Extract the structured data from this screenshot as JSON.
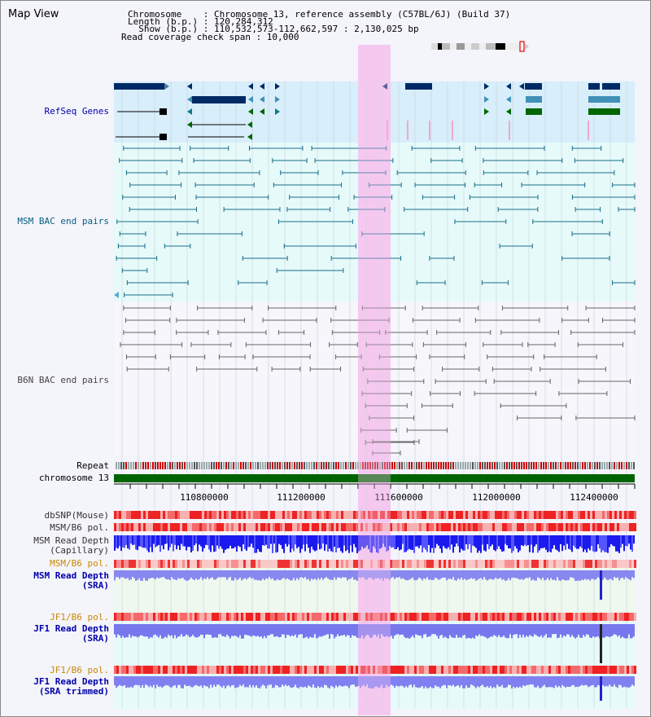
{
  "view_title": "Map View",
  "info": {
    "chromosome": "Chromosome    : Chromosome 13, reference assembly (C57BL/6J) (Build 37)",
    "length": "Length (b.p.) : 120,284,312",
    "show": "  Show (b.p.) : 110,532,573-112,662,597 : 2,130,025 bp",
    "span": "Read coverage check span : 10,000"
  },
  "tracks": {
    "refseq": "RefSeq Genes",
    "msm_bac": "MSM BAC end pairs",
    "b6n_bac": "B6N BAC end pairs",
    "repeat": "Repeat",
    "chromosome": "chromosome 13",
    "dbsnp": "dbSNP(Mouse)",
    "msm_b6_pol": "MSM/B6 pol.",
    "msm_depth_cap": "MSM Read Depth\n(Capillary)",
    "msm_b6_pol2": "MSM/B6 pol.",
    "msm_depth_sra": "MSM Read Depth\n(SRA)",
    "jf1_b6_pol": "JF1/B6 pol.",
    "jf1_depth_sra": "JF1 Read Depth\n(SRA)",
    "jf1_b6_pol2": "JF1/B6 pol.",
    "jf1_depth_trim": "JF1 Read Depth\n(SRA trimmed)"
  },
  "axis_ticks": [
    "110800000",
    "111200000",
    "111600000",
    "112000000",
    "112400000"
  ],
  "colors": {
    "refseq_label": "#0000aa",
    "msm_label": "#006080",
    "b6n_label": "#444444",
    "jf1_pol_label": "#cc8800",
    "highlight": "#f5c8f0",
    "chrom_bar": "#006400"
  }
}
